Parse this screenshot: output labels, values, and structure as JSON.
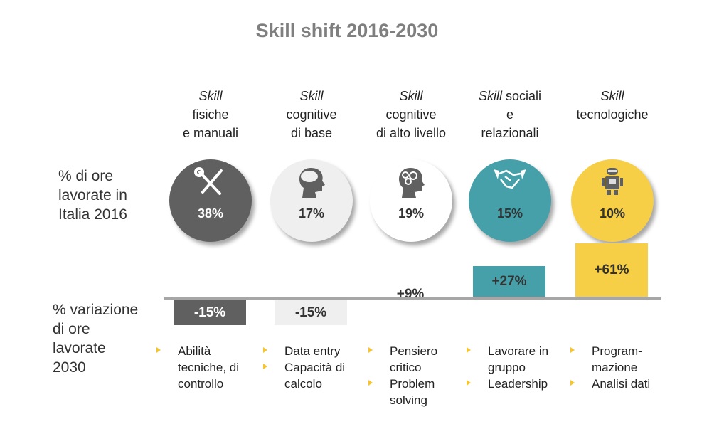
{
  "title": "Skill shift 2016-2030",
  "row_labels": {
    "share_2016": [
      "% di ore",
      "lavorate in",
      "Italia 2016"
    ],
    "change_2030": [
      "% variazione",
      "di ore",
      "lavorate",
      "2030"
    ]
  },
  "columns": [
    {
      "heading_italic": "Skill",
      "heading_rest": [
        "fisiche",
        "e manuali"
      ],
      "icon": "tools-icon",
      "share_2016": "38%",
      "change": "-15%",
      "circle_color": "#606060",
      "bar_color": "#606060",
      "pct_color": "#ffffff",
      "examples": [
        [
          "Abilità",
          "tecniche, di",
          "controllo"
        ]
      ]
    },
    {
      "heading_italic": "Skill",
      "heading_rest": [
        "cognitive",
        "di base"
      ],
      "icon": "head-brain-icon",
      "share_2016": "17%",
      "change": "-15%",
      "circle_color": "#efefef",
      "bar_color": "#efefef",
      "pct_color": "#333333",
      "examples": [
        [
          "Data entry"
        ],
        [
          "Capacità di",
          "calcolo"
        ]
      ]
    },
    {
      "heading_italic": "Skill",
      "heading_rest": [
        "cognitive",
        "di alto livello"
      ],
      "icon": "head-gears-icon",
      "share_2016": "19%",
      "change": "+9%",
      "circle_color": "#ffffff",
      "bar_color": "#ffffff",
      "pct_color": "#333333",
      "examples": [
        [
          "Pensiero",
          "critico"
        ],
        [
          "Problem",
          "solving"
        ]
      ]
    },
    {
      "heading_italic": "Skill",
      "heading_rest_inline": " sociali",
      "heading_rest": [
        "e",
        "relazionali"
      ],
      "icon": "handshake-icon",
      "share_2016": "15%",
      "change": "+27%",
      "circle_color": "#45a0aa",
      "bar_color": "#45a0aa",
      "pct_color": "#333333",
      "examples": [
        [
          "Lavorare in",
          "gruppo"
        ],
        [
          "Leadership"
        ]
      ]
    },
    {
      "heading_italic": "Skill",
      "heading_rest": [
        "tecnologiche"
      ],
      "icon": "robot-icon",
      "share_2016": "10%",
      "change": "+61%",
      "circle_color": "#f7cf47",
      "bar_color": "#f7cf47",
      "pct_color": "#333333",
      "examples": [
        [
          "Program-",
          "mazione"
        ],
        [
          "Analisi dati"
        ]
      ]
    }
  ],
  "chart_data": {
    "type": "bar",
    "title": "Skill shift 2016-2030",
    "categories": [
      "Skill fisiche e manuali",
      "Skill cognitive di base",
      "Skill cognitive di alto livello",
      "Skill sociali e relazionali",
      "Skill tecnologiche"
    ],
    "series": [
      {
        "name": "% di ore lavorate in Italia 2016",
        "values": [
          38,
          17,
          19,
          15,
          10
        ]
      },
      {
        "name": "% variazione di ore lavorate 2030",
        "values": [
          -15,
          -15,
          9,
          27,
          61
        ]
      }
    ]
  }
}
